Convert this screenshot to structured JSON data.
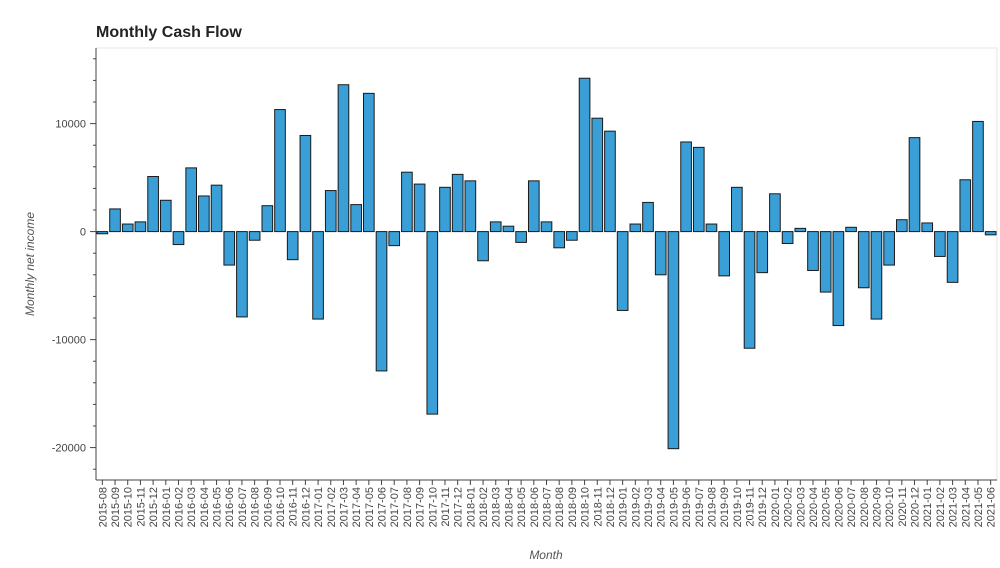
{
  "chart_data": {
    "type": "bar",
    "title": "Monthly Cash Flow",
    "xlabel": "Month",
    "ylabel": "Monthly net income",
    "ylim": [
      -23000,
      17000
    ],
    "yticks": [
      -20000,
      -10000,
      0,
      10000
    ],
    "bar_color": "#3a9fd6",
    "bar_edge_color": "#1a1a1a",
    "months": [
      "2015-08",
      "2015-09",
      "2015-10",
      "2015-11",
      "2015-12",
      "2016-01",
      "2016-02",
      "2016-03",
      "2016-04",
      "2016-05",
      "2016-06",
      "2016-07",
      "2016-08",
      "2016-09",
      "2016-10",
      "2016-11",
      "2016-12",
      "2017-01",
      "2017-02",
      "2017-03",
      "2017-04",
      "2017-05",
      "2017-06",
      "2017-07",
      "2017-08",
      "2017-09",
      "2017-10",
      "2017-11",
      "2017-12",
      "2018-01",
      "2018-02",
      "2018-03",
      "2018-04",
      "2018-05",
      "2018-06",
      "2018-07",
      "2018-08",
      "2018-09",
      "2018-10",
      "2018-11",
      "2018-12",
      "2019-01",
      "2019-02",
      "2019-03",
      "2019-04",
      "2019-05",
      "2019-06",
      "2019-07",
      "2019-08",
      "2019-09",
      "2019-10",
      "2019-11",
      "2019-12",
      "2020-01",
      "2020-02",
      "2020-03",
      "2020-04",
      "2020-05",
      "2020-06",
      "2020-07",
      "2020-08",
      "2020-09",
      "2020-10",
      "2020-11",
      "2020-12",
      "2021-01",
      "2021-02",
      "2021-03",
      "2021-04",
      "2021-05",
      "2021-06"
    ],
    "values": [
      -200,
      2100,
      700,
      900,
      5100,
      2900,
      -1200,
      5900,
      3300,
      4300,
      -3100,
      -7900,
      -800,
      2400,
      11300,
      -2600,
      8900,
      -8100,
      3800,
      13600,
      2500,
      12800,
      -12900,
      -1300,
      5500,
      4400,
      -16900,
      4100,
      5300,
      4700,
      -2700,
      900,
      500,
      -1000,
      4700,
      900,
      -1500,
      -800,
      14200,
      10500,
      9300,
      -7300,
      700,
      2700,
      -4000,
      -20100,
      8300,
      7800,
      700,
      -4100,
      4100,
      -10800,
      -3800,
      3500,
      -1100,
      300,
      -3600,
      -5600,
      -8700,
      400,
      -5200,
      -8100,
      -3100,
      1100,
      8700,
      800,
      -2300,
      -4700,
      4800,
      10200,
      -300
    ]
  }
}
